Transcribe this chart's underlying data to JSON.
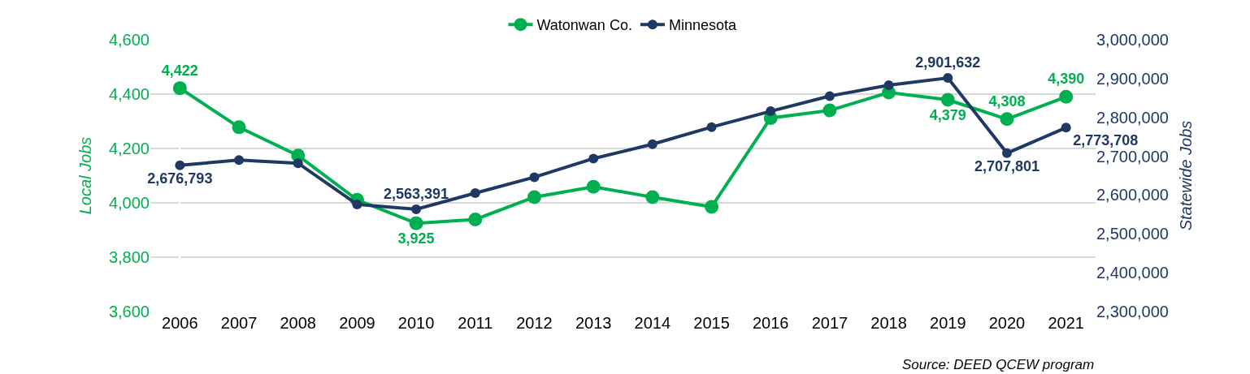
{
  "chart_data": {
    "type": "line",
    "categories": [
      "2006",
      "2007",
      "2008",
      "2009",
      "2010",
      "2011",
      "2012",
      "2013",
      "2014",
      "2015",
      "2016",
      "2017",
      "2018",
      "2019",
      "2020",
      "2021"
    ],
    "series": [
      {
        "name": "Watonwan Co.",
        "color": "#00b050",
        "values": [
          4422,
          4278,
          4174,
          4011,
          3925,
          3939,
          4021,
          4059,
          4021,
          3985,
          4312,
          4340,
          4406,
          4379,
          4308,
          4390
        ],
        "value_labels": [
          "4,422",
          null,
          null,
          null,
          "3,925",
          null,
          null,
          null,
          null,
          null,
          null,
          null,
          null,
          "4,379",
          "4,308",
          "4,390"
        ]
      },
      {
        "name": "Minnesota",
        "color": "#203864",
        "axis": "y2",
        "values": [
          2676793,
          2690000,
          2682000,
          2576000,
          2563391,
          2605000,
          2646000,
          2694000,
          2731000,
          2775000,
          2816000,
          2855000,
          2883000,
          2901632,
          2707801,
          2773708
        ],
        "value_labels": [
          "2,676,793",
          null,
          null,
          null,
          "2,563,391",
          null,
          null,
          null,
          null,
          null,
          null,
          null,
          null,
          "2,901,632",
          "2,707,801",
          "2,773,708"
        ]
      }
    ],
    "ylabel": "Local Jobs",
    "y2label": "Statewide Jobs",
    "ylim": [
      3600,
      4600
    ],
    "yticks": [
      {
        "value": 3600,
        "label": "3,600"
      },
      {
        "value": 3800,
        "label": "3,800"
      },
      {
        "value": 4000,
        "label": "4,000"
      },
      {
        "value": 4200,
        "label": "4,200"
      },
      {
        "value": 4400,
        "label": "4,400"
      },
      {
        "value": 4600,
        "label": "4,600"
      }
    ],
    "y2lim": [
      2300000,
      3000000
    ],
    "y2ticks": [
      {
        "value": 2300000,
        "label": "2,300,000"
      },
      {
        "value": 2400000,
        "label": "2,400,000"
      },
      {
        "value": 2500000,
        "label": "2,500,000"
      },
      {
        "value": 2600000,
        "label": "2,600,000"
      },
      {
        "value": 2700000,
        "label": "2,700,000"
      },
      {
        "value": 2800000,
        "label": "2,800,000"
      },
      {
        "value": 2900000,
        "label": "2,900,000"
      },
      {
        "value": 3000000,
        "label": "3,000,000"
      }
    ],
    "annotations": [
      "Source: DEED QCEW program"
    ],
    "grid": "y",
    "legend": "top",
    "marker": "circle",
    "line_style": "solid"
  }
}
